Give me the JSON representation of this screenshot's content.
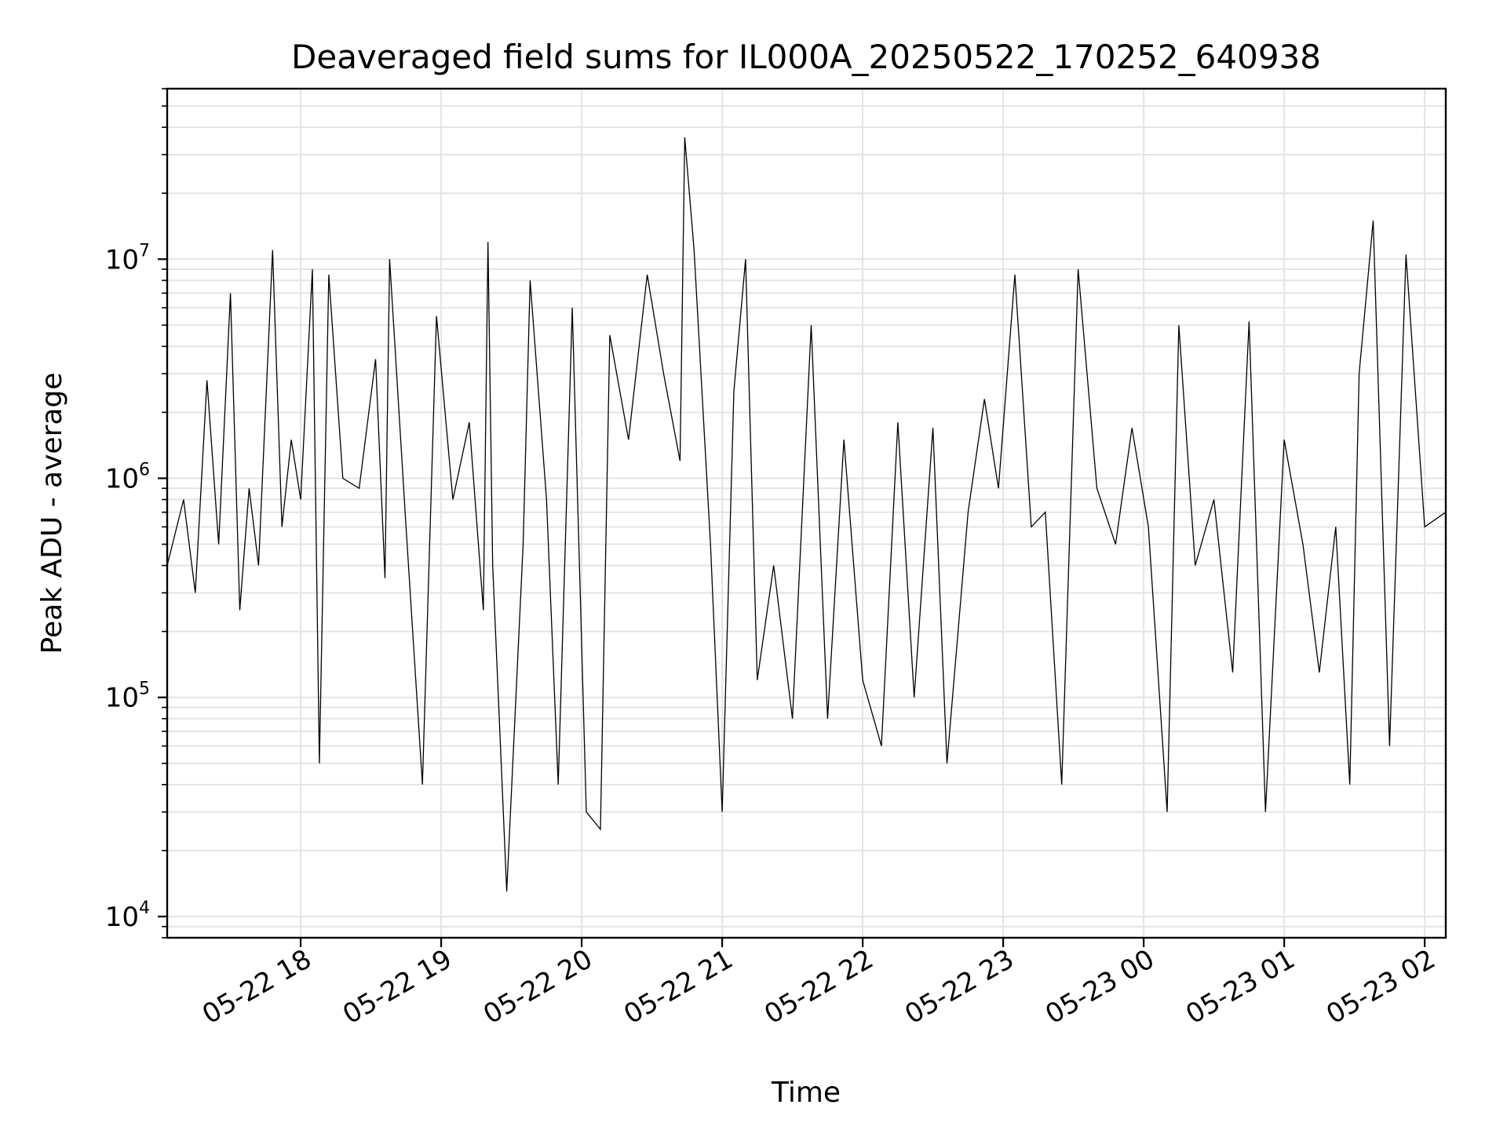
{
  "chart_data": {
    "type": "line",
    "title": "Deaveraged field sums for IL000A_20250522_170252_640938",
    "xlabel": "Time",
    "ylabel": "Peak ADU - average",
    "yscale": "log",
    "xlim": [
      "2025-05-22 17:03",
      "2025-05-23 02:09"
    ],
    "ylim": [
      8000,
      60000000
    ],
    "x_ticks": [
      {
        "time": "2025-05-22 18:00",
        "label": "05-22 18"
      },
      {
        "time": "2025-05-22 19:00",
        "label": "05-22 19"
      },
      {
        "time": "2025-05-22 20:00",
        "label": "05-22 20"
      },
      {
        "time": "2025-05-22 21:00",
        "label": "05-22 21"
      },
      {
        "time": "2025-05-22 22:00",
        "label": "05-22 22"
      },
      {
        "time": "2025-05-22 23:00",
        "label": "05-22 23"
      },
      {
        "time": "2025-05-23 00:00",
        "label": "05-23 00"
      },
      {
        "time": "2025-05-23 01:00",
        "label": "05-23 01"
      },
      {
        "time": "2025-05-23 02:00",
        "label": "05-23 02"
      }
    ],
    "y_ticks": [
      {
        "value": 10000,
        "base": "10",
        "exp": "4"
      },
      {
        "value": 100000,
        "base": "10",
        "exp": "5"
      },
      {
        "value": 1000000,
        "base": "10",
        "exp": "6"
      },
      {
        "value": 10000000,
        "base": "10",
        "exp": "7"
      }
    ],
    "grid": true,
    "series_color": "#000000",
    "series": [
      {
        "x": [
          "2025-05-22 17:03",
          "2025-05-22 17:10",
          "2025-05-22 17:15",
          "2025-05-22 17:20",
          "2025-05-22 17:25",
          "2025-05-22 17:30",
          "2025-05-22 17:34",
          "2025-05-22 17:38",
          "2025-05-22 17:42",
          "2025-05-22 17:48",
          "2025-05-22 17:52",
          "2025-05-22 17:56",
          "2025-05-22 18:00",
          "2025-05-22 18:05",
          "2025-05-22 18:08",
          "2025-05-22 18:12",
          "2025-05-22 18:18",
          "2025-05-22 18:25",
          "2025-05-22 18:32",
          "2025-05-22 18:36",
          "2025-05-22 18:38",
          "2025-05-22 18:45",
          "2025-05-22 18:52",
          "2025-05-22 18:58",
          "2025-05-22 19:05",
          "2025-05-22 19:12",
          "2025-05-22 19:18",
          "2025-05-22 19:20",
          "2025-05-22 19:22",
          "2025-05-22 19:28",
          "2025-05-22 19:35",
          "2025-05-22 19:38",
          "2025-05-22 19:45",
          "2025-05-22 19:50",
          "2025-05-22 19:56",
          "2025-05-22 20:02",
          "2025-05-22 20:08",
          "2025-05-22 20:12",
          "2025-05-22 20:20",
          "2025-05-22 20:28",
          "2025-05-22 20:35",
          "2025-05-22 20:42",
          "2025-05-22 20:44",
          "2025-05-22 20:48",
          "2025-05-22 20:55",
          "2025-05-22 21:00",
          "2025-05-22 21:05",
          "2025-05-22 21:10",
          "2025-05-22 21:15",
          "2025-05-22 21:22",
          "2025-05-22 21:30",
          "2025-05-22 21:38",
          "2025-05-22 21:45",
          "2025-05-22 21:52",
          "2025-05-22 22:00",
          "2025-05-22 22:08",
          "2025-05-22 22:15",
          "2025-05-22 22:22",
          "2025-05-22 22:30",
          "2025-05-22 22:36",
          "2025-05-22 22:45",
          "2025-05-22 22:52",
          "2025-05-22 22:58",
          "2025-05-22 23:05",
          "2025-05-22 23:12",
          "2025-05-22 23:18",
          "2025-05-22 23:25",
          "2025-05-22 23:32",
          "2025-05-22 23:40",
          "2025-05-22 23:48",
          "2025-05-22 23:55",
          "2025-05-23 00:02",
          "2025-05-23 00:10",
          "2025-05-23 00:15",
          "2025-05-23 00:22",
          "2025-05-23 00:30",
          "2025-05-23 00:38",
          "2025-05-23 00:45",
          "2025-05-23 00:52",
          "2025-05-23 01:00",
          "2025-05-23 01:08",
          "2025-05-23 01:15",
          "2025-05-23 01:22",
          "2025-05-23 01:28",
          "2025-05-23 01:32",
          "2025-05-23 01:38",
          "2025-05-23 01:45",
          "2025-05-23 01:52",
          "2025-05-23 02:00",
          "2025-05-23 02:09"
        ],
        "y": [
          400000,
          800000,
          300000,
          2800000,
          500000,
          7000000,
          250000,
          900000,
          400000,
          11000000,
          600000,
          1500000,
          800000,
          9000000,
          50000,
          8500000,
          1000000,
          900000,
          3500000,
          350000,
          10000000,
          600000,
          40000,
          5500000,
          800000,
          1800000,
          250000,
          12000000,
          400000,
          13000,
          500000,
          8000000,
          800000,
          40000,
          6000000,
          30000,
          25000,
          4500000,
          1500000,
          8500000,
          3000000,
          1200000,
          36000000,
          11000000,
          500000,
          30000,
          2500000,
          10000000,
          120000,
          400000,
          80000,
          5000000,
          80000,
          1500000,
          120000,
          60000,
          1800000,
          100000,
          1700000,
          50000,
          700000,
          2300000,
          900000,
          8500000,
          600000,
          700000,
          40000,
          9000000,
          900000,
          500000,
          1700000,
          600000,
          30000,
          5000000,
          400000,
          800000,
          130000,
          5200000,
          30000,
          1500000,
          500000,
          130000,
          600000,
          40000,
          3000000,
          15000000,
          60000,
          10500000,
          600000,
          700000
        ]
      }
    ]
  }
}
